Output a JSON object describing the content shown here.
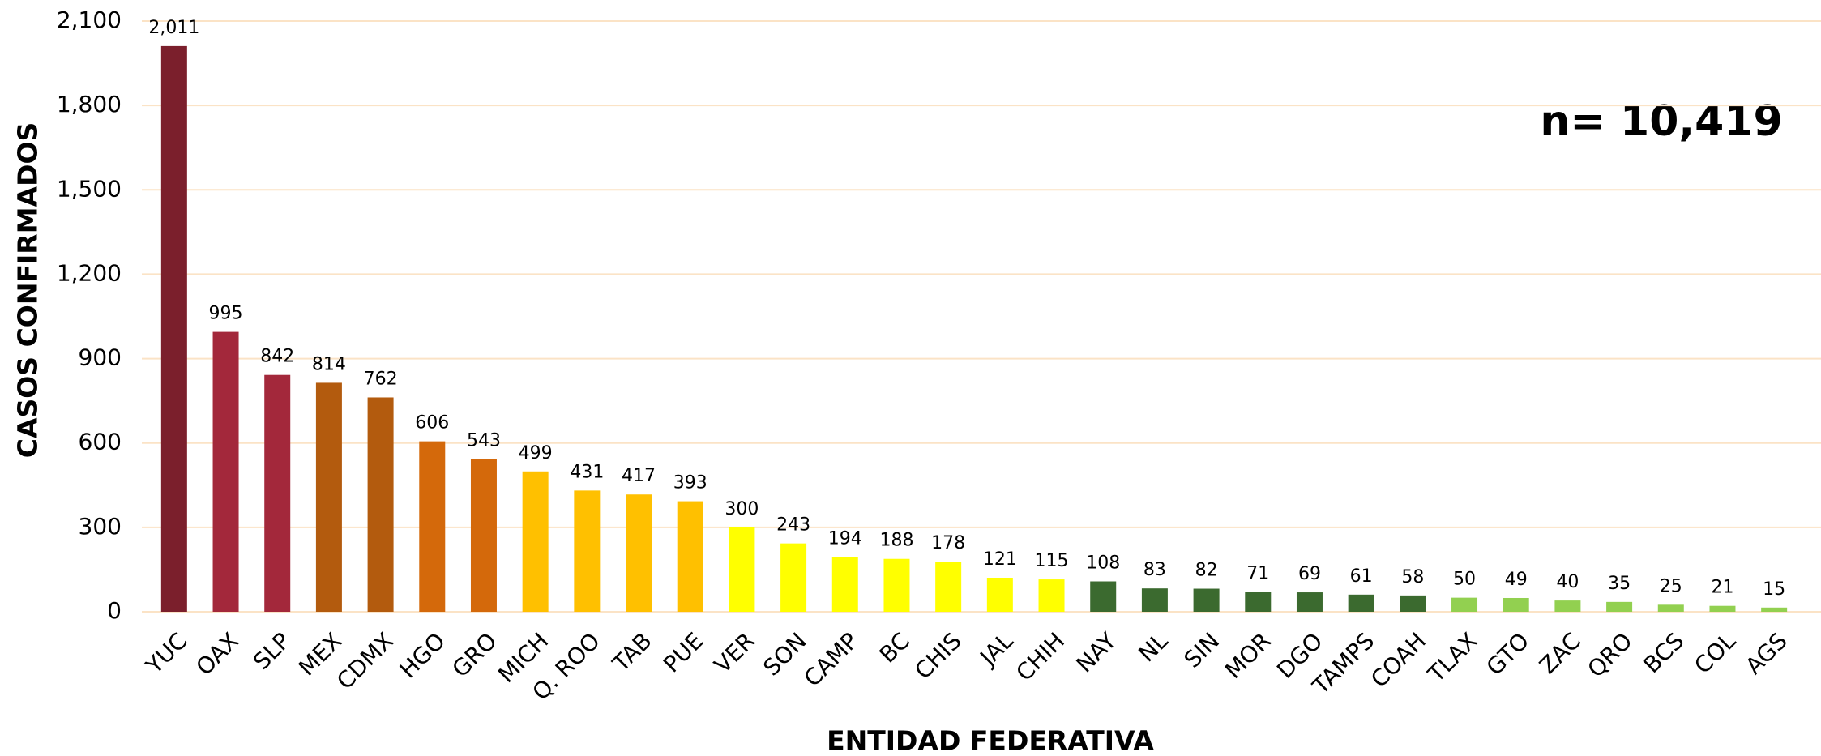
{
  "chart_data": {
    "type": "bar",
    "x_label": "ENTIDAD FEDERATIVA",
    "y_label": "CASOS CONFIRMADOS",
    "annotation": "n= 10,419",
    "categories": [
      "YUC",
      "OAX",
      "SLP",
      "MEX",
      "CDMX",
      "HGO",
      "GRO",
      "MICH",
      "Q. ROO",
      "TAB",
      "PUE",
      "VER",
      "SON",
      "CAMP",
      "BC",
      "CHIS",
      "JAL",
      "CHIH",
      "NAY",
      "NL",
      "SIN",
      "MOR",
      "DGO",
      "TAMPS",
      "COAH",
      "TLAX",
      "GTO",
      "ZAC",
      "QRO",
      "BCS",
      "COL",
      "AGS"
    ],
    "values": [
      2011,
      995,
      842,
      814,
      762,
      606,
      543,
      499,
      431,
      417,
      393,
      300,
      243,
      194,
      188,
      178,
      121,
      115,
      108,
      83,
      82,
      71,
      69,
      61,
      58,
      50,
      49,
      40,
      35,
      25,
      21,
      15
    ],
    "value_labels": [
      "2,011",
      "995",
      "842",
      "814",
      "762",
      "606",
      "543",
      "499",
      "431",
      "417",
      "393",
      "300",
      "243",
      "194",
      "188",
      "178",
      "121",
      "115",
      "108",
      "83",
      "82",
      "71",
      "69",
      "61",
      "58",
      "50",
      "49",
      "40",
      "35",
      "25",
      "21",
      "15"
    ],
    "colors": [
      "#7b1f2c",
      "#a3283b",
      "#a3283b",
      "#b35b0e",
      "#b35b0e",
      "#d4690b",
      "#d4690b",
      "#ffc000",
      "#ffc000",
      "#ffc000",
      "#ffc000",
      "#ffff00",
      "#ffff00",
      "#ffff00",
      "#ffff00",
      "#ffff00",
      "#ffff00",
      "#ffff00",
      "#3b6a2f",
      "#3b6a2f",
      "#3b6a2f",
      "#3b6a2f",
      "#3b6a2f",
      "#3b6a2f",
      "#3b6a2f",
      "#92d050",
      "#92d050",
      "#92d050",
      "#92d050",
      "#92d050",
      "#92d050",
      "#92d050"
    ],
    "ylim": [
      0,
      2100
    ],
    "yticks": [
      0,
      300,
      600,
      900,
      {
        "value": 1200,
        "label": "1,200"
      },
      {
        "value": 1500,
        "label": "1,500"
      },
      {
        "value": 1800,
        "label": "1,800"
      },
      {
        "value": 2100,
        "label": "2,100"
      }
    ],
    "grid": true
  }
}
